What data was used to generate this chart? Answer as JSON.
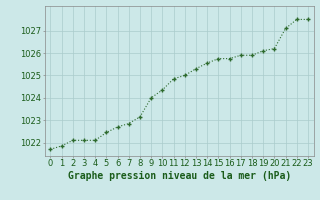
{
  "x": [
    0,
    1,
    2,
    3,
    4,
    5,
    6,
    7,
    8,
    9,
    10,
    11,
    12,
    13,
    14,
    15,
    16,
    17,
    18,
    19,
    20,
    21,
    22,
    23
  ],
  "y": [
    1021.7,
    1021.85,
    1022.1,
    1022.1,
    1022.1,
    1022.45,
    1022.7,
    1022.85,
    1023.15,
    1024.0,
    1024.35,
    1024.85,
    1025.0,
    1025.3,
    1025.55,
    1025.75,
    1025.75,
    1025.9,
    1025.9,
    1026.1,
    1026.2,
    1027.1,
    1027.5,
    1027.5
  ],
  "line_color": "#2d6a2d",
  "marker": "+",
  "marker_color": "#2d6a2d",
  "bg_color": "#cce8e8",
  "grid_color": "#aacccc",
  "xlabel": "Graphe pression niveau de la mer (hPa)",
  "xlabel_color": "#1a5c1a",
  "xlabel_fontsize": 7,
  "tick_label_color": "#1a5c1a",
  "tick_fontsize": 6,
  "ylim": [
    1021.4,
    1028.1
  ],
  "yticks": [
    1022,
    1023,
    1024,
    1025,
    1026,
    1027
  ],
  "xlim": [
    -0.5,
    23.5
  ],
  "xticks": [
    0,
    1,
    2,
    3,
    4,
    5,
    6,
    7,
    8,
    9,
    10,
    11,
    12,
    13,
    14,
    15,
    16,
    17,
    18,
    19,
    20,
    21,
    22,
    23
  ]
}
